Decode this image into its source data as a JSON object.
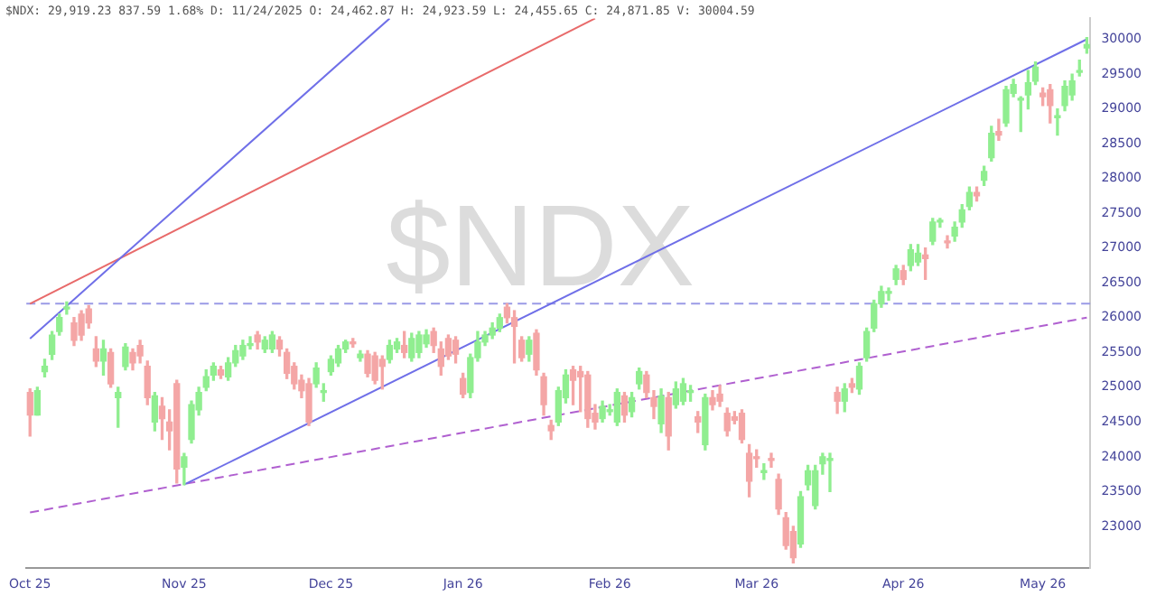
{
  "chart_data": {
    "type": "candlestick",
    "title": "$NDX",
    "subtitle": "$NDX: 29,919.23 837.59 1.68% D: 11/24/2025 O: 24,462.87 H: 24,923.59 L: 24,455.65 C: 24,871.85 V: 30004.59",
    "categories": [
      "Oct 25",
      null,
      null,
      null,
      null,
      null,
      null,
      null,
      null,
      null,
      null,
      null,
      null,
      null,
      null,
      null,
      null,
      null,
      null,
      null,
      null,
      "Nov 25",
      null,
      null,
      null,
      null,
      null,
      null,
      null,
      null,
      null,
      null,
      null,
      null,
      null,
      null,
      null,
      null,
      null,
      null,
      null,
      "Dec 25",
      null,
      null,
      null,
      null,
      null,
      null,
      null,
      null,
      null,
      null,
      null,
      null,
      null,
      null,
      null,
      null,
      null,
      "Jan 26",
      null,
      null,
      null,
      null,
      null,
      null,
      null,
      null,
      null,
      null,
      null,
      null,
      null,
      null,
      null,
      null,
      null,
      null,
      null,
      "Feb 26",
      null,
      null,
      null,
      null,
      null,
      null,
      null,
      null,
      null,
      null,
      null,
      null,
      null,
      null,
      null,
      null,
      null,
      null,
      null,
      "Mar 26",
      null,
      null,
      null,
      null,
      null,
      null,
      null,
      null,
      null,
      null,
      null,
      null,
      null,
      null,
      null,
      null,
      null,
      null,
      null,
      "Apr 26",
      null,
      null,
      null,
      null,
      null,
      null,
      null,
      null,
      null,
      null,
      null,
      null,
      null,
      null,
      null,
      null,
      null,
      null,
      "May 26",
      null,
      null,
      null,
      null,
      null,
      null
    ],
    "ohlc": [
      [
        24925,
        24975,
        24300,
        24600
      ],
      [
        24600,
        25000,
        24600,
        24950
      ],
      [
        25225,
        25400,
        25150,
        25300
      ],
      [
        25475,
        25800,
        25400,
        25750
      ],
      [
        25800,
        26050,
        25750,
        26000
      ],
      [
        26125,
        26225,
        26050,
        26150
      ],
      [
        25925,
        26000,
        25600,
        25675
      ],
      [
        26050,
        26100,
        25675,
        25750
      ],
      [
        26125,
        26175,
        25850,
        25925
      ],
      [
        25550,
        25725,
        25300,
        25375
      ],
      [
        25375,
        25675,
        25175,
        25550
      ],
      [
        25500,
        25550,
        25000,
        25050
      ],
      [
        24850,
        25000,
        24425,
        24925
      ],
      [
        25300,
        25625,
        25250,
        25575
      ],
      [
        25500,
        25550,
        25250,
        25350
      ],
      [
        25600,
        25675,
        25350,
        25450
      ],
      [
        25300,
        25375,
        24750,
        24850
      ],
      [
        24500,
        24925,
        24375,
        24875
      ],
      [
        24725,
        24850,
        24250,
        24550
      ],
      [
        24500,
        24675,
        24100,
        24375
      ],
      [
        25050,
        25100,
        23625,
        23825
      ],
      [
        23850,
        24050,
        23600,
        24000
      ],
      [
        24250,
        24800,
        24200,
        24750
      ],
      [
        24675,
        25000,
        24600,
        24925
      ],
      [
        25000,
        25250,
        24950,
        25150
      ],
      [
        25175,
        25350,
        25100,
        25300
      ],
      [
        25250,
        25300,
        25125,
        25175
      ],
      [
        25150,
        25425,
        25100,
        25350
      ],
      [
        25350,
        25600,
        25300,
        25525
      ],
      [
        25450,
        25675,
        25400,
        25600
      ],
      [
        25600,
        25725,
        25550,
        25625
      ],
      [
        25750,
        25800,
        25550,
        25650
      ],
      [
        25550,
        25725,
        25500,
        25675
      ],
      [
        25550,
        25800,
        25500,
        25750
      ],
      [
        25675,
        25725,
        25450,
        25550
      ],
      [
        25500,
        25550,
        25125,
        25200
      ],
      [
        25300,
        25350,
        24975,
        25050
      ],
      [
        25100,
        25175,
        24850,
        24950
      ],
      [
        25050,
        25125,
        24450,
        24500
      ],
      [
        25050,
        25350,
        25000,
        25275
      ],
      [
        24925,
        25050,
        24800,
        24925
      ],
      [
        25225,
        25450,
        25175,
        25400
      ],
      [
        25350,
        25600,
        25300,
        25550
      ],
      [
        25550,
        25675,
        25500,
        25650
      ],
      [
        25650,
        25700,
        25575,
        25625
      ],
      [
        25425,
        25525,
        25375,
        25475
      ],
      [
        25475,
        25525,
        25150,
        25200
      ],
      [
        25450,
        25500,
        25050,
        25100
      ],
      [
        25400,
        25450,
        24975,
        25300
      ],
      [
        25400,
        25675,
        25350,
        25600
      ],
      [
        25550,
        25700,
        25500,
        25650
      ],
      [
        25600,
        25800,
        25425,
        25500
      ],
      [
        25425,
        25775,
        25375,
        25700
      ],
      [
        25500,
        25800,
        25425,
        25750
      ],
      [
        25625,
        25825,
        25575,
        25750
      ],
      [
        25800,
        25850,
        25500,
        25600
      ],
      [
        25550,
        25650,
        25175,
        25300
      ],
      [
        25700,
        25750,
        25400,
        25450
      ],
      [
        25675,
        25725,
        25350,
        25475
      ],
      [
        25125,
        25200,
        24850,
        24900
      ],
      [
        24925,
        25475,
        24850,
        25425
      ],
      [
        25425,
        25800,
        25375,
        25650
      ],
      [
        25650,
        25800,
        25600,
        25750
      ],
      [
        25750,
        25925,
        25700,
        25850
      ],
      [
        25850,
        26050,
        25800,
        26000
      ],
      [
        26150,
        26200,
        25925,
        26000
      ],
      [
        26000,
        26100,
        25350,
        25875
      ],
      [
        25675,
        25725,
        25375,
        25425
      ],
      [
        25475,
        25725,
        25375,
        25675
      ],
      [
        25775,
        25825,
        25175,
        25250
      ],
      [
        25150,
        25200,
        24600,
        24750
      ],
      [
        24450,
        24525,
        24250,
        24375
      ],
      [
        24500,
        25000,
        24450,
        24950
      ],
      [
        24850,
        25250,
        24775,
        25175
      ],
      [
        25250,
        25300,
        24750,
        25100
      ],
      [
        25225,
        25300,
        24650,
        25150
      ],
      [
        25175,
        25225,
        24425,
        24550
      ],
      [
        24625,
        24750,
        24400,
        24500
      ],
      [
        24550,
        24800,
        24500,
        24725
      ],
      [
        24650,
        24750,
        24600,
        24675
      ],
      [
        24500,
        24975,
        24450,
        24925
      ],
      [
        24875,
        24925,
        24500,
        24600
      ],
      [
        24650,
        24925,
        24575,
        24850
      ],
      [
        25050,
        25275,
        24975,
        25225
      ],
      [
        25175,
        25225,
        24850,
        24925
      ],
      [
        24850,
        24950,
        24550,
        24725
      ],
      [
        24475,
        24975,
        24350,
        24875
      ],
      [
        24850,
        24925,
        24100,
        24300
      ],
      [
        24750,
        25075,
        24700,
        24975
      ],
      [
        24800,
        25125,
        24750,
        25050
      ],
      [
        24925,
        25025,
        24800,
        24925
      ],
      [
        24575,
        24650,
        24350,
        24500
      ],
      [
        24175,
        24900,
        24100,
        24850
      ],
      [
        24850,
        24950,
        24675,
        24750
      ],
      [
        24900,
        25025,
        24725,
        24800
      ],
      [
        24625,
        24700,
        24300,
        24375
      ],
      [
        24575,
        24650,
        24475,
        24525
      ],
      [
        24625,
        24675,
        24200,
        24250
      ],
      [
        24050,
        24175,
        23425,
        23650
      ],
      [
        24000,
        24100,
        23850,
        23975
      ],
      [
        23775,
        23900,
        23675,
        23800
      ],
      [
        23975,
        24050,
        23850,
        23950
      ],
      [
        23675,
        23750,
        23175,
        23250
      ],
      [
        23125,
        23200,
        22675,
        22725
      ],
      [
        22925,
        23000,
        22475,
        22550
      ],
      [
        22750,
        23500,
        22700,
        23425
      ],
      [
        23600,
        23875,
        23525,
        23800
      ],
      [
        23300,
        23875,
        23250,
        23800
      ],
      [
        23900,
        24050,
        23750,
        24000
      ],
      [
        23950,
        24050,
        23500,
        23975
      ],
      [
        24925,
        25000,
        24625,
        24800
      ],
      [
        24800,
        25050,
        24650,
        24975
      ],
      [
        25050,
        25125,
        24925,
        25000
      ],
      [
        24975,
        25350,
        24900,
        25300
      ],
      [
        25425,
        25850,
        25375,
        25800
      ],
      [
        25850,
        26250,
        25800,
        26200
      ],
      [
        26200,
        26450,
        26150,
        26375
      ],
      [
        26350,
        26425,
        26250,
        26350
      ],
      [
        26550,
        26750,
        26475,
        26700
      ],
      [
        26675,
        26750,
        26475,
        26550
      ],
      [
        26750,
        27050,
        26675,
        26975
      ],
      [
        26800,
        27050,
        26750,
        26925
      ],
      [
        26900,
        27000,
        26550,
        26850
      ],
      [
        27100,
        27425,
        27050,
        27375
      ],
      [
        27375,
        27425,
        27300,
        27375
      ],
      [
        27100,
        27175,
        27000,
        27075
      ],
      [
        27175,
        27375,
        27100,
        27300
      ],
      [
        27375,
        27625,
        27300,
        27550
      ],
      [
        27600,
        27875,
        27550,
        27800
      ],
      [
        27800,
        27875,
        27675,
        27750
      ],
      [
        27975,
        28175,
        27900,
        28100
      ],
      [
        28300,
        28750,
        28250,
        28650
      ],
      [
        28675,
        28850,
        28550,
        28625
      ],
      [
        28800,
        29325,
        28750,
        29275
      ],
      [
        29225,
        29425,
        29175,
        29350
      ],
      [
        29125,
        29175,
        28675,
        29125
      ],
      [
        29200,
        29550,
        29000,
        29375
      ],
      [
        29400,
        29675,
        29350,
        29600
      ],
      [
        29225,
        29300,
        29050,
        29175
      ],
      [
        29275,
        29350,
        28800,
        29050
      ],
      [
        28875,
        29000,
        28625,
        28875
      ],
      [
        29050,
        29400,
        28975,
        29325
      ],
      [
        29200,
        29500,
        29125,
        29400
      ],
      [
        29525,
        29700,
        29475,
        29525
      ],
      [
        29875,
        30025,
        29800,
        29925
      ]
    ],
    "colors": [
      "#f4a6a6",
      "#90ee90",
      "#90ee90",
      "#90ee90",
      "#90ee90",
      "#90ee90",
      "#f4a6a6",
      "#f4a6a6",
      "#f4a6a6",
      "#f4a6a6",
      "#90ee90",
      "#f4a6a6",
      "#90ee90",
      "#90ee90",
      "#f4a6a6",
      "#f4a6a6",
      "#f4a6a6",
      "#90ee90",
      "#f4a6a6",
      "#f4a6a6",
      "#f4a6a6",
      "#90ee90",
      "#90ee90",
      "#90ee90",
      "#90ee90",
      "#90ee90",
      "#f4a6a6",
      "#90ee90",
      "#90ee90",
      "#90ee90",
      "#90ee90",
      "#f4a6a6",
      "#90ee90",
      "#90ee90",
      "#f4a6a6",
      "#f4a6a6",
      "#f4a6a6",
      "#f4a6a6",
      "#f4a6a6",
      "#90ee90",
      "#90ee90",
      "#90ee90",
      "#90ee90",
      "#90ee90",
      "#f4a6a6",
      "#90ee90",
      "#f4a6a6",
      "#f4a6a6",
      "#f4a6a6",
      "#90ee90",
      "#90ee90",
      "#f4a6a6",
      "#90ee90",
      "#90ee90",
      "#90ee90",
      "#f4a6a6",
      "#f4a6a6",
      "#f4a6a6",
      "#f4a6a6",
      "#f4a6a6",
      "#90ee90",
      "#90ee90",
      "#90ee90",
      "#90ee90",
      "#90ee90",
      "#f4a6a6",
      "#f4a6a6",
      "#f4a6a6",
      "#90ee90",
      "#f4a6a6",
      "#f4a6a6",
      "#f4a6a6",
      "#90ee90",
      "#90ee90",
      "#f4a6a6",
      "#f4a6a6",
      "#f4a6a6",
      "#f4a6a6",
      "#90ee90",
      "#90ee90",
      "#90ee90",
      "#f4a6a6",
      "#90ee90",
      "#90ee90",
      "#f4a6a6",
      "#f4a6a6",
      "#90ee90",
      "#f4a6a6",
      "#90ee90",
      "#90ee90",
      "#90ee90",
      "#f4a6a6",
      "#90ee90",
      "#f4a6a6",
      "#f4a6a6",
      "#f4a6a6",
      "#f4a6a6",
      "#f4a6a6",
      "#f4a6a6",
      "#f4a6a6",
      "#90ee90",
      "#f4a6a6",
      "#f4a6a6",
      "#f4a6a6",
      "#f4a6a6",
      "#90ee90",
      "#90ee90",
      "#90ee90",
      "#90ee90",
      "#90ee90",
      "#f4a6a6",
      "#90ee90",
      "#f4a6a6",
      "#90ee90",
      "#90ee90",
      "#90ee90",
      "#90ee90",
      "#90ee90",
      "#90ee90",
      "#f4a6a6",
      "#90ee90",
      "#90ee90",
      "#f4a6a6",
      "#90ee90",
      "#90ee90",
      "#f4a6a6",
      "#90ee90",
      "#90ee90",
      "#90ee90",
      "#f4a6a6",
      "#90ee90",
      "#90ee90",
      "#f4a6a6",
      "#90ee90",
      "#90ee90",
      "#90ee90",
      "#90ee90",
      "#90ee90",
      "#f4a6a6",
      "#f4a6a6",
      "#90ee90",
      "#90ee90",
      "#90ee90",
      "#90ee90",
      "#90ee90"
    ],
    "ylim": [
      22400,
      30300
    ],
    "yticks": [
      23000,
      23500,
      24000,
      24500,
      25000,
      25500,
      26000,
      26500,
      27000,
      27500,
      28000,
      28500,
      29000,
      29500,
      30000
    ],
    "series": [
      {
        "type": "line",
        "color": "#6f6fe8",
        "values": [
          25700,
          null,
          null,
          null,
          null,
          null,
          null,
          null,
          null,
          null,
          null,
          null,
          null,
          null,
          null,
          null,
          null,
          null,
          null,
          null,
          null,
          null,
          null,
          null,
          null,
          null,
          null,
          null,
          null,
          null,
          null,
          null,
          null,
          null,
          null,
          null,
          null,
          null,
          null,
          null,
          null,
          null,
          null,
          null,
          null,
          null,
          null,
          null,
          null,
          30300,
          null,
          null,
          null,
          null,
          null,
          null,
          null,
          null,
          null,
          null,
          null,
          null,
          null,
          null,
          null,
          null,
          null,
          null,
          null,
          null,
          null,
          null,
          null,
          null,
          null,
          null,
          null,
          null,
          null,
          null,
          null,
          null,
          null,
          null,
          null,
          null,
          null,
          null,
          null,
          null,
          null,
          null,
          null,
          null,
          null,
          null,
          null,
          null,
          null,
          null,
          null,
          null,
          null,
          null,
          null,
          null,
          null,
          null,
          null,
          null,
          null,
          null,
          null,
          null,
          null,
          null,
          null,
          null,
          null,
          null,
          null,
          null,
          null,
          null,
          null,
          null,
          null,
          null,
          null,
          null,
          null,
          null,
          null,
          null,
          null,
          null,
          null,
          null,
          null,
          null,
          null,
          null,
          null,
          null,
          null
        ]
      },
      {
        "type": "line",
        "color": "#e86a6a",
        "values": [
          26200,
          null,
          null,
          null,
          null,
          null,
          null,
          null,
          null,
          null,
          null,
          null,
          null,
          null,
          null,
          null,
          null,
          null,
          null,
          null,
          null,
          null,
          null,
          null,
          null,
          null,
          null,
          null,
          null,
          null,
          null,
          null,
          null,
          null,
          null,
          null,
          null,
          null,
          null,
          null,
          null,
          null,
          null,
          null,
          null,
          null,
          null,
          null,
          null,
          null,
          null,
          null,
          null,
          null,
          null,
          null,
          null,
          null,
          null,
          null,
          null,
          null,
          null,
          null,
          null,
          null,
          null,
          null,
          null,
          null,
          null,
          null,
          null,
          null,
          null,
          null,
          null,
          30300,
          null,
          null,
          null,
          null,
          null,
          null,
          null,
          null,
          null,
          null,
          null,
          null,
          null,
          null,
          null,
          null,
          null,
          null,
          null,
          null,
          null,
          null,
          null,
          null,
          null,
          null,
          null,
          null,
          null,
          null,
          null,
          null,
          null,
          null,
          null,
          null,
          null,
          null,
          null,
          null,
          null,
          null,
          null,
          null,
          null,
          null,
          null,
          null,
          null,
          null,
          null,
          null,
          null,
          null,
          null,
          null,
          null,
          null,
          null,
          null,
          null,
          null,
          null,
          null,
          null,
          null,
          null
        ]
      },
      {
        "type": "line",
        "color": "#6f6fe8",
        "values": [
          null,
          null,
          null,
          null,
          null,
          null,
          null,
          null,
          null,
          null,
          null,
          null,
          null,
          null,
          null,
          null,
          null,
          null,
          null,
          null,
          null,
          23600,
          null,
          null,
          null,
          null,
          null,
          null,
          null,
          null,
          null,
          null,
          null,
          null,
          null,
          null,
          null,
          null,
          null,
          null,
          null,
          null,
          null,
          null,
          null,
          null,
          null,
          null,
          null,
          null,
          null,
          null,
          null,
          null,
          null,
          null,
          null,
          null,
          null,
          null,
          null,
          null,
          null,
          null,
          null,
          null,
          null,
          null,
          null,
          null,
          null,
          null,
          null,
          null,
          null,
          null,
          null,
          null,
          null,
          null,
          null,
          null,
          null,
          null,
          null,
          null,
          null,
          null,
          null,
          null,
          null,
          null,
          null,
          null,
          null,
          null,
          null,
          null,
          null,
          null,
          null,
          null,
          null,
          null,
          null,
          null,
          null,
          null,
          null,
          null,
          null,
          null,
          null,
          null,
          null,
          null,
          null,
          null,
          null,
          null,
          null,
          null,
          null,
          null,
          null,
          null,
          null,
          null,
          null,
          null,
          null,
          null,
          null,
          null,
          null,
          null,
          null,
          null,
          null,
          null,
          null,
          null,
          null,
          null,
          30000
        ]
      },
      {
        "type": "line",
        "color": "#b060d0",
        "line_style": "dashed",
        "values": [
          23200,
          null,
          null,
          null,
          null,
          null,
          null,
          null,
          null,
          null,
          null,
          null,
          null,
          null,
          null,
          null,
          null,
          null,
          null,
          null,
          null,
          null,
          null,
          null,
          null,
          null,
          null,
          null,
          null,
          null,
          null,
          null,
          null,
          null,
          null,
          null,
          null,
          null,
          null,
          null,
          null,
          null,
          null,
          null,
          null,
          null,
          null,
          null,
          null,
          null,
          null,
          null,
          null,
          null,
          null,
          null,
          null,
          null,
          null,
          null,
          null,
          null,
          null,
          null,
          null,
          null,
          null,
          null,
          null,
          null,
          null,
          null,
          null,
          null,
          null,
          null,
          null,
          null,
          null,
          null,
          null,
          null,
          null,
          null,
          null,
          null,
          null,
          null,
          null,
          null,
          null,
          null,
          null,
          null,
          null,
          null,
          null,
          null,
          null,
          null,
          null,
          null,
          null,
          null,
          null,
          null,
          null,
          null,
          null,
          null,
          null,
          null,
          null,
          null,
          null,
          null,
          null,
          null,
          null,
          null,
          null,
          null,
          null,
          null,
          null,
          null,
          null,
          null,
          null,
          null,
          null,
          null,
          null,
          null,
          null,
          null,
          null,
          null,
          null,
          null,
          null,
          null,
          null,
          null,
          26000
        ]
      }
    ],
    "ref_lines": [
      {
        "axis": "y",
        "value": 26200,
        "color": "#9a9ae6",
        "line_style": "dashed"
      }
    ]
  }
}
